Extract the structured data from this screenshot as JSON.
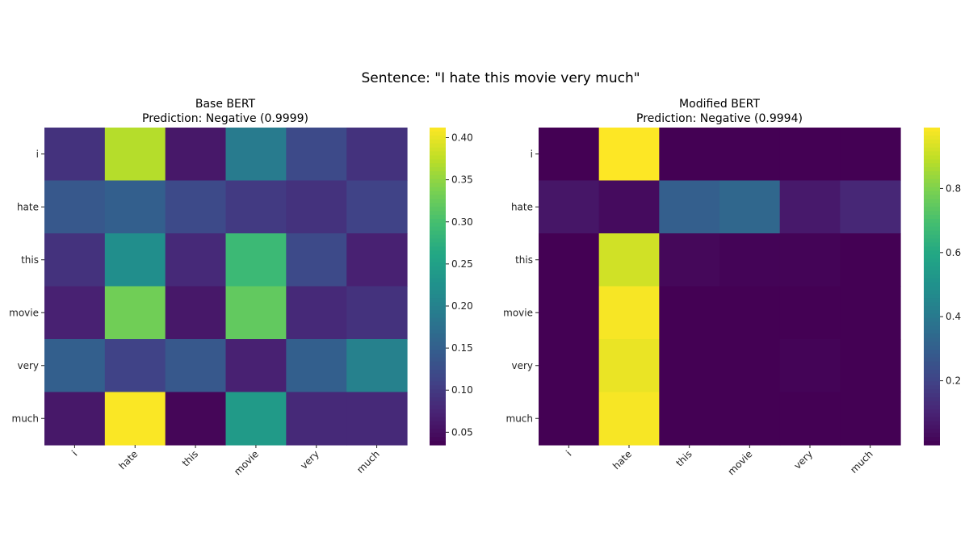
{
  "figure": {
    "suptitle": "Sentence: \"I hate this movie very much\""
  },
  "chart_data": [
    {
      "type": "heatmap",
      "title": "Base BERT",
      "subtitle": "Prediction: Negative (0.9999)",
      "colormap": "viridis",
      "x_labels": [
        "i",
        "hate",
        "this",
        "movie",
        "very",
        "much"
      ],
      "y_labels": [
        "i",
        "hate",
        "this",
        "movie",
        "very",
        "much"
      ],
      "values": [
        [
          0.09,
          0.37,
          0.06,
          0.19,
          0.12,
          0.09
        ],
        [
          0.14,
          0.15,
          0.12,
          0.1,
          0.09,
          0.11
        ],
        [
          0.09,
          0.22,
          0.08,
          0.29,
          0.12,
          0.07
        ],
        [
          0.07,
          0.33,
          0.06,
          0.32,
          0.08,
          0.09
        ],
        [
          0.15,
          0.11,
          0.14,
          0.07,
          0.15,
          0.2
        ],
        [
          0.06,
          0.41,
          0.04,
          0.24,
          0.08,
          0.08
        ]
      ],
      "colorbar": {
        "min": 0.035,
        "max": 0.412,
        "ticks": [
          0.05,
          0.1,
          0.15,
          0.2,
          0.25,
          0.3,
          0.35,
          0.4
        ],
        "tick_labels": [
          "0.05",
          "0.10",
          "0.15",
          "0.20",
          "0.25",
          "0.30",
          "0.35",
          "0.40"
        ]
      }
    },
    {
      "type": "heatmap",
      "title": "Modified BERT",
      "subtitle": "Prediction: Negative (0.9994)",
      "colormap": "viridis",
      "x_labels": [
        "i",
        "hate",
        "this",
        "movie",
        "very",
        "much"
      ],
      "y_labels": [
        "i",
        "hate",
        "this",
        "movie",
        "very",
        "much"
      ],
      "values": [
        [
          0.0,
          0.99,
          0.0,
          0.0,
          0.0,
          0.0
        ],
        [
          0.06,
          0.03,
          0.3,
          0.33,
          0.07,
          0.11
        ],
        [
          0.0,
          0.92,
          0.02,
          0.01,
          0.01,
          0.0
        ],
        [
          0.0,
          0.98,
          0.0,
          0.0,
          0.0,
          0.0
        ],
        [
          0.0,
          0.96,
          0.0,
          0.0,
          0.01,
          0.0
        ],
        [
          0.0,
          0.98,
          0.0,
          0.0,
          0.0,
          0.0
        ]
      ],
      "colorbar": {
        "min": 0.0,
        "max": 0.99,
        "ticks": [
          0.2,
          0.4,
          0.6,
          0.8
        ],
        "tick_labels": [
          "0.2",
          "0.4",
          "0.6",
          "0.8"
        ]
      }
    }
  ]
}
